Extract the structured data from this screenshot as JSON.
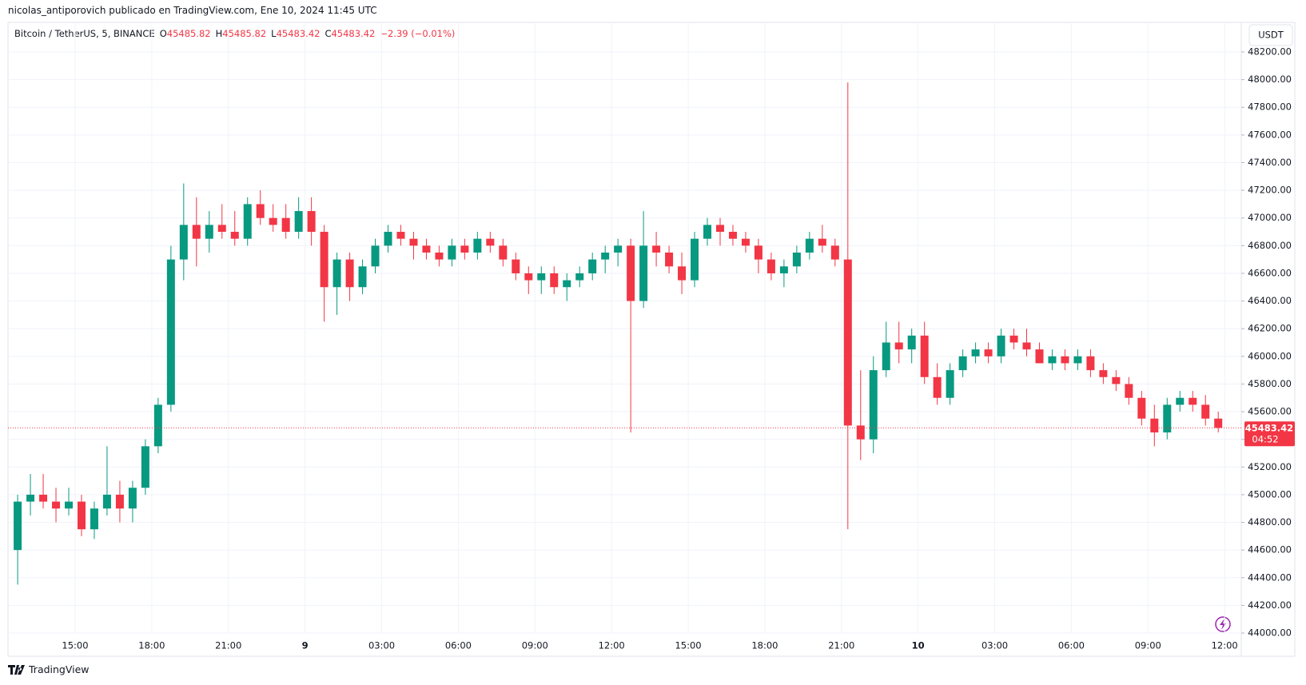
{
  "header": "nicolas_antiporovich publicado en TradingView.com, Ene 10, 2024 11:45 UTC",
  "footer": "TradingView",
  "chart_data": {
    "type": "candlestick",
    "legend": {
      "symbol": "Bitcoin / TetherUS, 5, BINANCE",
      "fields": [
        {
          "label": "O",
          "value": 45485.82
        },
        {
          "label": "H",
          "value": 45485.82
        },
        {
          "label": "L",
          "value": 45483.42
        },
        {
          "label": "C",
          "value": 45483.42
        }
      ],
      "change": "−2.39 (−0.01%)"
    },
    "currency": "USDT",
    "up_color": "#089981",
    "down_color": "#f23645",
    "grid": true,
    "last_price": 45483.42,
    "countdown": "04:52",
    "x_labels": [
      "15:00",
      "18:00",
      "21:00",
      "9",
      "03:00",
      "06:00",
      "09:00",
      "12:00",
      "15:00",
      "18:00",
      "21:00",
      "10",
      "03:00",
      "06:00",
      "09:00",
      "12:00"
    ],
    "ylim": [
      44000,
      48200
    ],
    "yticks": [
      {
        "value": 44000,
        "label": "44000.00"
      },
      {
        "value": 44200,
        "label": "44200.00"
      },
      {
        "value": 44400,
        "label": "44400.00"
      },
      {
        "value": 44600,
        "label": "44600.00"
      },
      {
        "value": 44800,
        "label": "44800.00"
      },
      {
        "value": 45000,
        "label": "45000.00"
      },
      {
        "value": 45200,
        "label": "45200.00"
      },
      {
        "value": 45400,
        "label": "45400.00"
      },
      {
        "value": 45600,
        "label": "45600.00"
      },
      {
        "value": 45800,
        "label": "45800.00"
      },
      {
        "value": 46000,
        "label": "46000.00"
      },
      {
        "value": 46200,
        "label": "46200.00"
      },
      {
        "value": 46400,
        "label": "46400.00"
      },
      {
        "value": 46600,
        "label": "46600.00"
      },
      {
        "value": 46800,
        "label": "46800.00"
      },
      {
        "value": 47000,
        "label": "47000.00"
      },
      {
        "value": 47200,
        "label": "47200.00"
      },
      {
        "value": 47400,
        "label": "47400.00"
      },
      {
        "value": 47600,
        "label": "47600.00"
      },
      {
        "value": 47800,
        "label": "47800.00"
      },
      {
        "value": 48000,
        "label": "48000.00"
      },
      {
        "value": 48200,
        "label": "48200.00"
      }
    ],
    "candles": [
      [
        44600,
        45000,
        44350,
        44950
      ],
      [
        44950,
        45150,
        44850,
        45000
      ],
      [
        45000,
        45150,
        44900,
        44950
      ],
      [
        44950,
        45050,
        44800,
        44900
      ],
      [
        44900,
        45050,
        44850,
        44950
      ],
      [
        44950,
        45000,
        44700,
        44750
      ],
      [
        44750,
        44950,
        44680,
        44900
      ],
      [
        44900,
        45350,
        44850,
        45000
      ],
      [
        45000,
        45100,
        44800,
        44900
      ],
      [
        44900,
        45100,
        44800,
        45050
      ],
      [
        45050,
        45400,
        45000,
        45350
      ],
      [
        45350,
        45700,
        45300,
        45650
      ],
      [
        45650,
        46800,
        45600,
        46700
      ],
      [
        46700,
        47250,
        46550,
        46950
      ],
      [
        46950,
        47150,
        46650,
        46850
      ],
      [
        46850,
        47050,
        46750,
        46950
      ],
      [
        46950,
        47100,
        46850,
        46900
      ],
      [
        46900,
        47050,
        46800,
        46850
      ],
      [
        46850,
        47150,
        46800,
        47100
      ],
      [
        47100,
        47200,
        46950,
        47000
      ],
      [
        47000,
        47100,
        46900,
        46950
      ],
      [
        47000,
        47100,
        46850,
        46900
      ],
      [
        46900,
        47150,
        46850,
        47050
      ],
      [
        47050,
        47150,
        46800,
        46900
      ],
      [
        46900,
        46950,
        46250,
        46500
      ],
      [
        46500,
        46750,
        46300,
        46700
      ],
      [
        46700,
        46750,
        46400,
        46500
      ],
      [
        46500,
        46700,
        46450,
        46650
      ],
      [
        46650,
        46850,
        46600,
        46800
      ],
      [
        46800,
        46950,
        46750,
        46900
      ],
      [
        46900,
        46950,
        46800,
        46850
      ],
      [
        46850,
        46900,
        46700,
        46800
      ],
      [
        46800,
        46850,
        46700,
        46750
      ],
      [
        46750,
        46800,
        46650,
        46700
      ],
      [
        46700,
        46850,
        46650,
        46800
      ],
      [
        46800,
        46850,
        46700,
        46750
      ],
      [
        46750,
        46900,
        46700,
        46850
      ],
      [
        46850,
        46900,
        46750,
        46800
      ],
      [
        46800,
        46850,
        46650,
        46700
      ],
      [
        46700,
        46750,
        46550,
        46600
      ],
      [
        46600,
        46650,
        46450,
        46550
      ],
      [
        46550,
        46650,
        46450,
        46600
      ],
      [
        46600,
        46650,
        46450,
        46500
      ],
      [
        46500,
        46600,
        46400,
        46550
      ],
      [
        46550,
        46650,
        46500,
        46600
      ],
      [
        46600,
        46750,
        46550,
        46700
      ],
      [
        46700,
        46800,
        46600,
        46750
      ],
      [
        46750,
        46850,
        46650,
        46800
      ],
      [
        46800,
        46850,
        45450,
        46400
      ],
      [
        46400,
        47050,
        46350,
        46800
      ],
      [
        46800,
        46900,
        46650,
        46750
      ],
      [
        46750,
        46800,
        46600,
        46650
      ],
      [
        46650,
        46750,
        46450,
        46550
      ],
      [
        46550,
        46900,
        46500,
        46850
      ],
      [
        46850,
        47000,
        46800,
        46950
      ],
      [
        46950,
        47000,
        46800,
        46900
      ],
      [
        46900,
        46950,
        46800,
        46850
      ],
      [
        46850,
        46900,
        46750,
        46800
      ],
      [
        46800,
        46850,
        46600,
        46700
      ],
      [
        46700,
        46750,
        46550,
        46600
      ],
      [
        46600,
        46700,
        46500,
        46650
      ],
      [
        46650,
        46800,
        46600,
        46750
      ],
      [
        46750,
        46900,
        46700,
        46850
      ],
      [
        46850,
        46950,
        46750,
        46800
      ],
      [
        46800,
        46850,
        46650,
        46700
      ],
      [
        46700,
        47980,
        44750,
        45500
      ],
      [
        45500,
        45900,
        45250,
        45400
      ],
      [
        45400,
        46000,
        45300,
        45900
      ],
      [
        45900,
        46250,
        45850,
        46100
      ],
      [
        46100,
        46250,
        45950,
        46050
      ],
      [
        46050,
        46200,
        45950,
        46150
      ],
      [
        46150,
        46250,
        45800,
        45850
      ],
      [
        45850,
        45950,
        45650,
        45700
      ],
      [
        45700,
        45950,
        45650,
        45900
      ],
      [
        45900,
        46050,
        45850,
        46000
      ],
      [
        46000,
        46100,
        45950,
        46050
      ],
      [
        46050,
        46100,
        45950,
        46000
      ],
      [
        46000,
        46200,
        45950,
        46150
      ],
      [
        46150,
        46200,
        46050,
        46100
      ],
      [
        46100,
        46200,
        46000,
        46050
      ],
      [
        46050,
        46100,
        45950,
        45950
      ],
      [
        45950,
        46050,
        45900,
        46000
      ],
      [
        46000,
        46050,
        45900,
        45950
      ],
      [
        45950,
        46050,
        45900,
        46000
      ],
      [
        46000,
        46050,
        45850,
        45900
      ],
      [
        45900,
        45950,
        45800,
        45850
      ],
      [
        45850,
        45900,
        45750,
        45800
      ],
      [
        45800,
        45850,
        45650,
        45700
      ],
      [
        45700,
        45750,
        45500,
        45550
      ],
      [
        45550,
        45650,
        45350,
        45450
      ],
      [
        45450,
        45700,
        45400,
        45650
      ],
      [
        45650,
        45750,
        45600,
        45700
      ],
      [
        45700,
        45750,
        45600,
        45650
      ],
      [
        45650,
        45720,
        45500,
        45550
      ],
      [
        45550,
        45600,
        45450,
        45483.42
      ]
    ]
  }
}
